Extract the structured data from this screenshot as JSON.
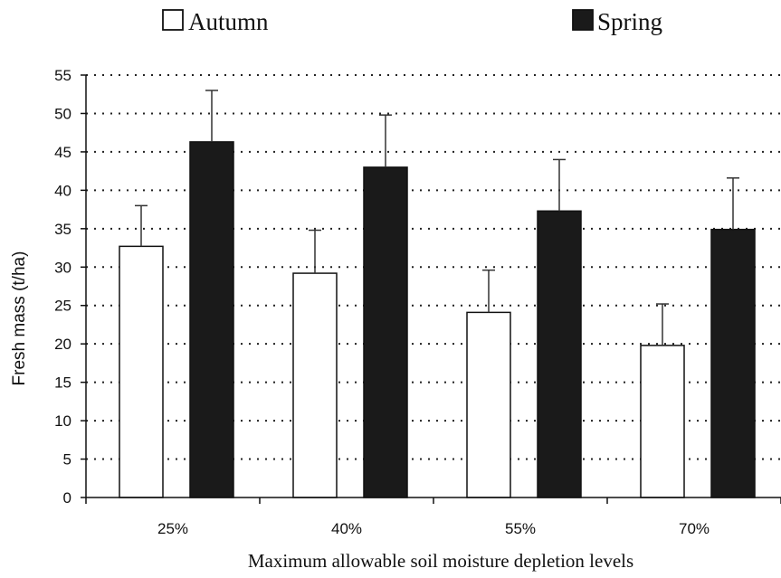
{
  "chart_data": {
    "type": "bar",
    "title": "",
    "xlabel": "Maximum allowable soil moisture depletion levels",
    "ylabel": "Fresh mass (t/ha)",
    "ylim": [
      0,
      55
    ],
    "yticks": [
      0,
      5,
      10,
      15,
      20,
      25,
      30,
      35,
      40,
      45,
      50,
      55
    ],
    "grid": "horizontal dotted",
    "legend": "top",
    "categories": [
      "25%",
      "40%",
      "55%",
      "70%"
    ],
    "series": [
      {
        "name": "Autumn",
        "fill": "#ffffff",
        "values": [
          32.7,
          29.2,
          24.1,
          19.8
        ],
        "error_upper": [
          38.0,
          34.8,
          29.6,
          25.2
        ]
      },
      {
        "name": "Spring",
        "fill": "#1a1a1a",
        "values": [
          46.3,
          43.0,
          37.3,
          34.9
        ],
        "error_upper": [
          53.0,
          49.8,
          44.0,
          41.6
        ]
      }
    ]
  }
}
